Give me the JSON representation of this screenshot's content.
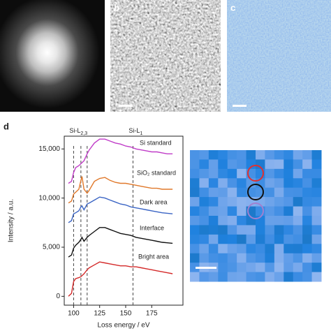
{
  "panel_labels": [
    "b",
    "c",
    "d"
  ],
  "chart_data": {
    "type": "line",
    "x_label": "Loss energy / eV",
    "y_label": "Intensity / a.u.",
    "xlim": [
      91,
      205
    ],
    "xticks": [
      100,
      125,
      150,
      175
    ],
    "ylim": [
      -900,
      16300
    ],
    "yticks": [
      0,
      {
        "value": 5000,
        "label": "5,000"
      },
      {
        "value": 10000,
        "label": "10,000"
      },
      {
        "value": 15000,
        "label": "15,000"
      }
    ],
    "vlines": [
      100,
      107,
      113,
      157
    ],
    "annotations": [
      {
        "text": "Si-L",
        "subscript": "2,3"
      },
      {
        "text": "Si-L",
        "subscript": "1"
      }
    ],
    "x": [
      95,
      98,
      100,
      102,
      105,
      107,
      108,
      110,
      113,
      115,
      120,
      125,
      130,
      135,
      140,
      145,
      150,
      155,
      160,
      165,
      170,
      175,
      180,
      185,
      190,
      195
    ],
    "series": [
      {
        "name": "Si standard",
        "color": "#c03cc8",
        "values": [
          11500,
          11700,
          12600,
          13100,
          13300,
          13500,
          13600,
          13800,
          14500,
          14900,
          15600,
          16000,
          16000,
          15800,
          15600,
          15500,
          15300,
          15200,
          15000,
          14900,
          14800,
          14700,
          14700,
          14600,
          14500,
          14500
        ]
      },
      {
        "name": "SiO₂ standard",
        "color": "#e0782a",
        "values": [
          9500,
          9700,
          10400,
          10600,
          10900,
          11800,
          12200,
          10900,
          10500,
          10800,
          11700,
          12000,
          12100,
          11800,
          11600,
          11500,
          11500,
          11400,
          11300,
          11200,
          11100,
          11000,
          11000,
          10900,
          10900,
          10900
        ]
      },
      {
        "name": "Dark area",
        "color": "#3a64c4",
        "values": [
          7500,
          7700,
          8400,
          8500,
          8700,
          9100,
          9200,
          8800,
          9400,
          9500,
          9800,
          10100,
          10000,
          9800,
          9600,
          9400,
          9300,
          9100,
          9000,
          8900,
          8800,
          8700,
          8600,
          8500,
          8450,
          8400
        ]
      },
      {
        "name": "Interface",
        "color": "#111111",
        "values": [
          4000,
          4200,
          4900,
          5200,
          5500,
          5800,
          6000,
          5600,
          6000,
          6200,
          6600,
          7000,
          7000,
          6800,
          6600,
          6400,
          6300,
          6200,
          6000,
          5900,
          5800,
          5700,
          5600,
          5500,
          5450,
          5400
        ]
      },
      {
        "name": "Bright area",
        "color": "#d42a2a",
        "values": [
          0,
          300,
          1500,
          1800,
          1900,
          2000,
          2100,
          2300,
          2700,
          2900,
          3200,
          3500,
          3400,
          3300,
          3200,
          3100,
          3100,
          3000,
          3000,
          2900,
          2800,
          2700,
          2600,
          2500,
          2400,
          2300
        ]
      }
    ]
  }
}
